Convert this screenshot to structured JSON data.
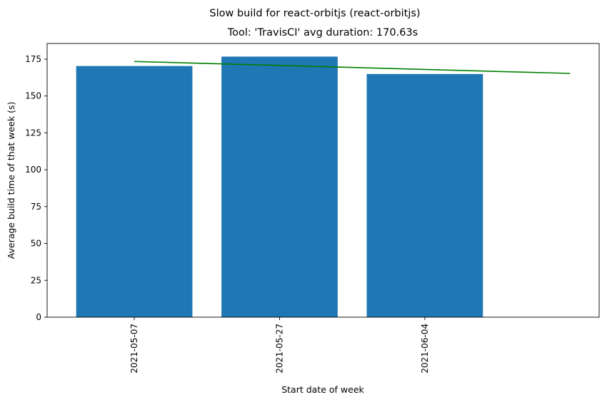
{
  "chart_data": {
    "type": "bar",
    "title": "Slow build for react-orbitjs (react-orbitjs)",
    "subtitle": "Tool: 'TravisCI' avg duration: 170.63s",
    "xlabel": "Start date of week",
    "ylabel": "Average build time of that week (s)",
    "categories": [
      "2021-05-07",
      "2021-05-27",
      "2021-06-04"
    ],
    "values": [
      170.3,
      176.7,
      164.9
    ],
    "ylim": [
      0,
      185.6
    ],
    "yticks": [
      0,
      25,
      50,
      75,
      100,
      125,
      150,
      175
    ],
    "xlim": [
      -0.6,
      3.2
    ],
    "trend_line": {
      "x": [
        0,
        3
      ],
      "y": [
        173.4,
        165.3
      ]
    },
    "colors": {
      "bar": "#1f77b4",
      "trend": "#008000"
    },
    "grid": false,
    "legend": "none"
  }
}
